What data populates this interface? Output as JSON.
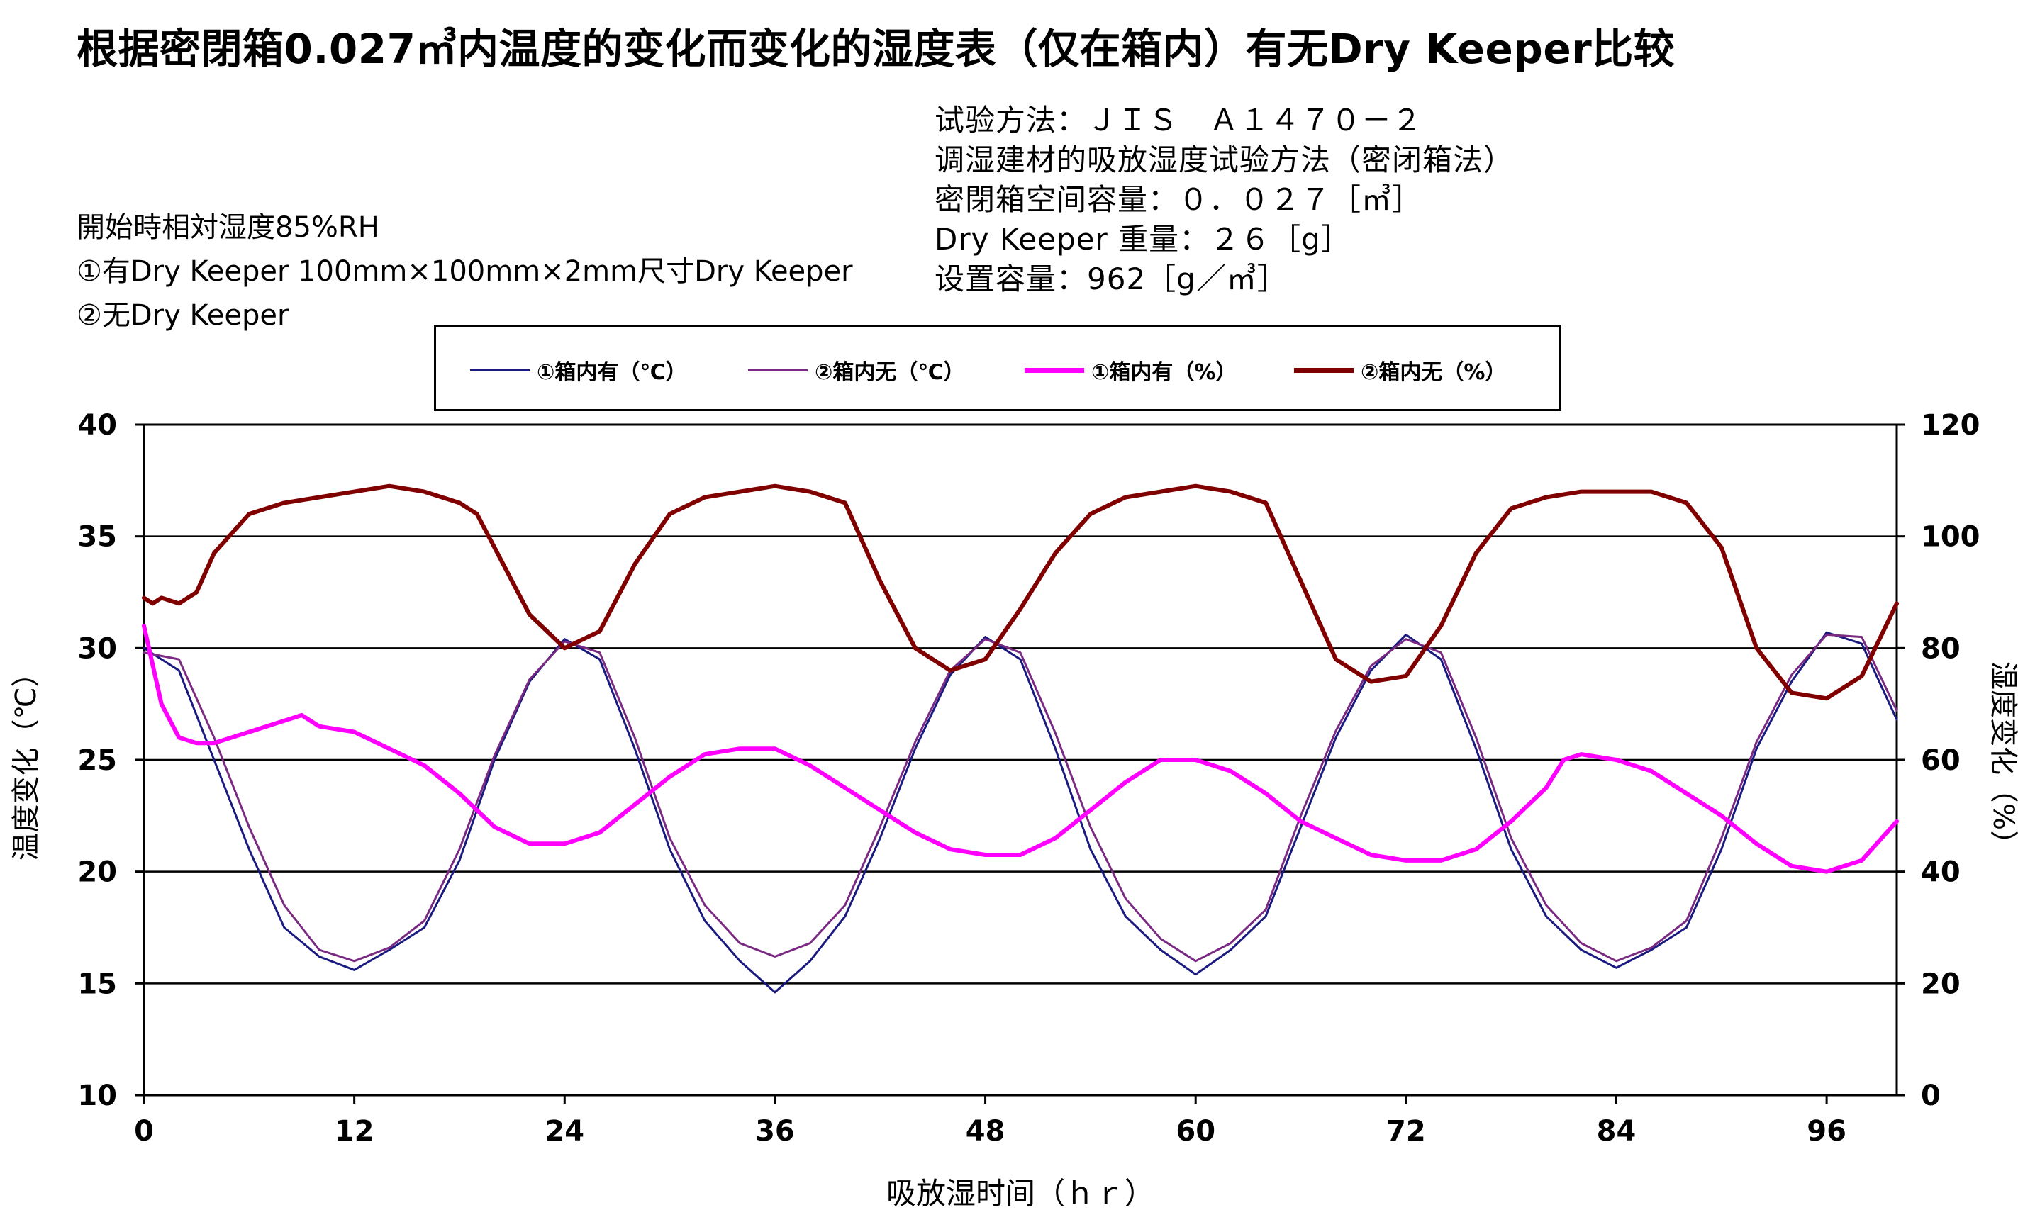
{
  "title": "根据密閉箱0.027㎥内温度的变化而变化的湿度表（仅在箱内）有无Dry Keeper比较",
  "notes": [
    "開始時相対湿度85%RH",
    "①有Dry Keeper 100mm×100mm×2mm尺寸Dry Keeper",
    "②无Dry Keeper"
  ],
  "method": [
    "试验方法：ＪＩＳ　Ａ１４７０－２",
    "调湿建材的吸放湿度试验方法（密闭箱法）",
    "密閉箱空间容量：０．０２７［㎥］",
    "Dry Keeper 重量：２６［g］",
    "设置容量：962［g／㎥］"
  ],
  "colors": {
    "temp_with": "#1a1a80",
    "temp_without": "#7a2a82",
    "hum_with": "#ff00ff",
    "hum_without": "#800000"
  },
  "chart_data": {
    "type": "line",
    "xlabel": "吸放湿时间（ｈｒ）",
    "ylabel_left": "温度变化（℃）",
    "ylabel_right": "湿度变化（%）",
    "xlim": [
      0,
      100
    ],
    "ylim_left": [
      10,
      40
    ],
    "ylim_right": [
      0,
      120
    ],
    "x_ticks": [
      0,
      12,
      24,
      36,
      48,
      60,
      72,
      84,
      96
    ],
    "y_ticks_left": [
      10,
      15,
      20,
      25,
      30,
      35,
      40
    ],
    "y_ticks_right": [
      0,
      20,
      40,
      60,
      80,
      100,
      120
    ],
    "grid": "horizontal",
    "legend_position": "top",
    "series": [
      {
        "name": "①箱内有（℃）",
        "axis": "left",
        "colorKey": "temp_with",
        "x": [
          0,
          2,
          4,
          6,
          8,
          10,
          12,
          14,
          16,
          18,
          20,
          22,
          24,
          26,
          28,
          30,
          32,
          34,
          36,
          38,
          40,
          42,
          44,
          46,
          48,
          50,
          52,
          54,
          56,
          58,
          60,
          62,
          64,
          66,
          68,
          70,
          72,
          74,
          76,
          78,
          80,
          82,
          84,
          86,
          88,
          90,
          92,
          94,
          96,
          98,
          100
        ],
        "values": [
          30.0,
          29.0,
          25.0,
          21.0,
          17.5,
          16.2,
          15.6,
          16.5,
          17.5,
          20.5,
          25.0,
          28.5,
          30.4,
          29.5,
          25.5,
          21.0,
          17.8,
          16.0,
          14.6,
          16.0,
          18.0,
          21.5,
          25.5,
          28.8,
          30.5,
          29.5,
          25.5,
          21.0,
          18.0,
          16.5,
          15.4,
          16.5,
          18.0,
          22.0,
          26.0,
          29.0,
          30.6,
          29.5,
          25.5,
          21.0,
          18.0,
          16.5,
          15.7,
          16.5,
          17.5,
          21.0,
          25.5,
          28.5,
          30.7,
          30.2,
          26.8
        ]
      },
      {
        "name": "②箱内无（℃）",
        "axis": "left",
        "colorKey": "temp_without",
        "x": [
          0,
          2,
          4,
          6,
          8,
          10,
          12,
          14,
          16,
          18,
          20,
          22,
          24,
          26,
          28,
          30,
          32,
          34,
          36,
          38,
          40,
          42,
          44,
          46,
          48,
          50,
          52,
          54,
          56,
          58,
          60,
          62,
          64,
          66,
          68,
          70,
          72,
          74,
          76,
          78,
          80,
          82,
          84,
          86,
          88,
          90,
          92,
          94,
          96,
          98,
          100
        ],
        "values": [
          29.8,
          29.5,
          26.0,
          22.0,
          18.5,
          16.5,
          16.0,
          16.6,
          17.8,
          21.0,
          25.2,
          28.6,
          30.3,
          29.8,
          26.0,
          21.5,
          18.5,
          16.8,
          16.2,
          16.8,
          18.5,
          22.0,
          25.8,
          29.0,
          30.4,
          29.8,
          26.2,
          22.0,
          18.8,
          17.0,
          16.0,
          16.8,
          18.3,
          22.5,
          26.3,
          29.2,
          30.4,
          29.8,
          26.0,
          21.5,
          18.5,
          16.8,
          16.0,
          16.6,
          17.8,
          21.5,
          25.8,
          28.8,
          30.6,
          30.5,
          27.2
        ]
      },
      {
        "name": "①箱内有（%）",
        "axis": "right",
        "colorKey": "hum_with",
        "x": [
          0,
          1,
          2,
          3,
          4,
          6,
          8,
          9,
          10,
          12,
          14,
          16,
          18,
          20,
          22,
          24,
          26,
          28,
          30,
          32,
          34,
          36,
          38,
          40,
          42,
          44,
          46,
          48,
          50,
          52,
          54,
          56,
          58,
          60,
          62,
          64,
          66,
          68,
          70,
          72,
          74,
          76,
          78,
          80,
          81,
          82,
          84,
          86,
          88,
          90,
          92,
          94,
          96,
          98,
          100
        ],
        "values": [
          84,
          70,
          64,
          63,
          63,
          65,
          67,
          68,
          66,
          65,
          62,
          59,
          54,
          48,
          45,
          45,
          47,
          52,
          57,
          61,
          62,
          62,
          59,
          55,
          51,
          47,
          44,
          43,
          43,
          46,
          51,
          56,
          60,
          60,
          58,
          54,
          49,
          46,
          43,
          42,
          42,
          44,
          49,
          55,
          60,
          61,
          60,
          58,
          54,
          50,
          45,
          41,
          40,
          42,
          49
        ]
      },
      {
        "name": "②箱内无（%）",
        "axis": "right",
        "colorKey": "hum_without",
        "x": [
          0,
          0.5,
          1,
          2,
          3,
          4,
          6,
          8,
          10,
          12,
          14,
          16,
          18,
          19,
          20,
          22,
          24,
          26,
          28,
          30,
          32,
          34,
          36,
          38,
          40,
          42,
          44,
          46,
          48,
          50,
          52,
          54,
          56,
          58,
          60,
          62,
          64,
          66,
          68,
          70,
          72,
          74,
          76,
          78,
          80,
          82,
          84,
          86,
          88,
          90,
          92,
          94,
          96,
          98,
          100
        ],
        "values": [
          89,
          88,
          89,
          88,
          90,
          97,
          104,
          106,
          107,
          108,
          109,
          108,
          106,
          104,
          98,
          86,
          80,
          83,
          95,
          104,
          107,
          108,
          109,
          108,
          106,
          92,
          80,
          76,
          78,
          87,
          97,
          104,
          107,
          108,
          109,
          108,
          106,
          92,
          78,
          74,
          75,
          84,
          97,
          105,
          107,
          108,
          108,
          108,
          106,
          98,
          80,
          72,
          71,
          75,
          88
        ]
      }
    ]
  }
}
